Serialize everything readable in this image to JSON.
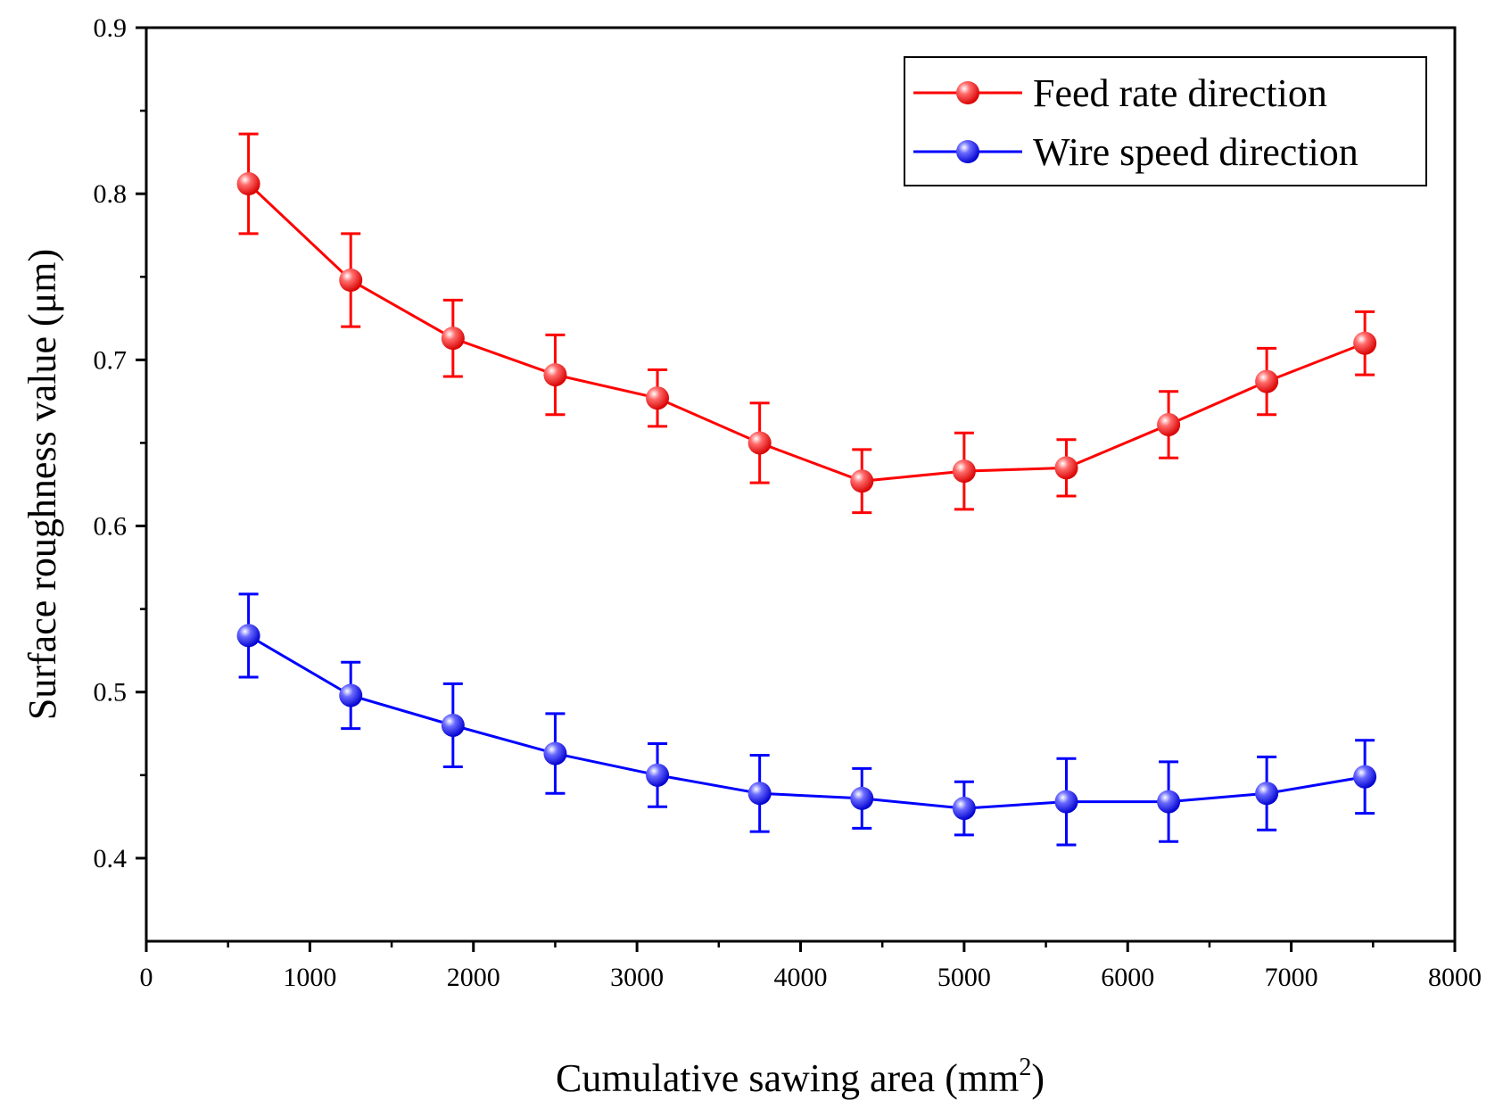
{
  "chart_data": {
    "type": "line",
    "title": "",
    "xlabel": "Cumulative sawing area (mm",
    "xlabel_superscript": "2",
    "xlabel_suffix": ")",
    "ylabel": "Surface roughness value (μm)",
    "xlim": [
      0,
      8000
    ],
    "ylim": [
      0.35,
      0.9
    ],
    "x_ticks": [
      0,
      1000,
      2000,
      3000,
      4000,
      5000,
      6000,
      7000,
      8000
    ],
    "y_ticks": [
      0.4,
      0.5,
      0.6,
      0.7,
      0.8,
      0.9
    ],
    "y_tick_labels": [
      "0.4",
      "0.5",
      "0.6",
      "0.7",
      "0.8",
      "0.9"
    ],
    "x_minor_step": 500,
    "y_minor_step": 0.05,
    "grid": false,
    "legend_position": "top-right",
    "x": [
      625,
      1250,
      1875,
      2500,
      3125,
      3750,
      4375,
      5000,
      5625,
      6250,
      6850,
      7450
    ],
    "series": [
      {
        "name": "Feed rate direction",
        "color": "#ff0000",
        "values": [
          0.806,
          0.748,
          0.713,
          0.691,
          0.677,
          0.65,
          0.627,
          0.633,
          0.635,
          0.661,
          0.687,
          0.71
        ],
        "errors": [
          0.03,
          0.028,
          0.023,
          0.024,
          0.017,
          0.024,
          0.019,
          0.023,
          0.017,
          0.02,
          0.02,
          0.019
        ]
      },
      {
        "name": "Wire speed direction",
        "color": "#0000ff",
        "values": [
          0.534,
          0.498,
          0.48,
          0.463,
          0.45,
          0.439,
          0.436,
          0.43,
          0.434,
          0.434,
          0.439,
          0.449
        ],
        "errors": [
          0.025,
          0.02,
          0.025,
          0.024,
          0.019,
          0.023,
          0.018,
          0.016,
          0.026,
          0.024,
          0.022,
          0.022
        ]
      }
    ]
  }
}
